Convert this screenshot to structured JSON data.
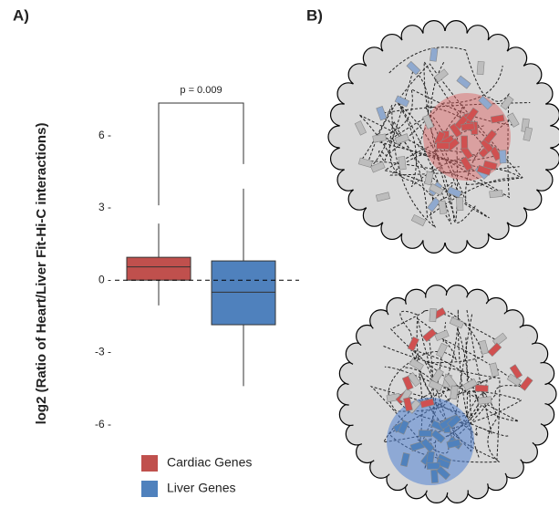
{
  "chart_data": {
    "type": "box",
    "panel_labels": [
      "A)",
      "B)"
    ],
    "ylabel": "log2 (Ratio of Heart/Liver Fit-Hi-C interactions)",
    "annotation": "p = 0.009",
    "ylim": [
      -7,
      8
    ],
    "yticks": [
      {
        "value": 6,
        "label": "6 -"
      },
      {
        "value": 3,
        "label": "3 -"
      },
      {
        "value": 0,
        "label": "0 -"
      },
      {
        "value": -3,
        "label": "-3 -"
      },
      {
        "value": -6,
        "label": "-6 -"
      }
    ],
    "reference_line": 0,
    "series": [
      {
        "name": "Cardiac Genes",
        "color": "#c0504d",
        "whisker_low": -1.05,
        "q1": 0.0,
        "median": 0.55,
        "q3": 0.95,
        "whisker_high": 2.35
      },
      {
        "name": "Liver Genes",
        "color": "#4f81bd",
        "whisker_low": -4.4,
        "q1": -1.85,
        "median": -0.5,
        "q3": 0.8,
        "whisker_high": 3.8
      }
    ]
  }
}
